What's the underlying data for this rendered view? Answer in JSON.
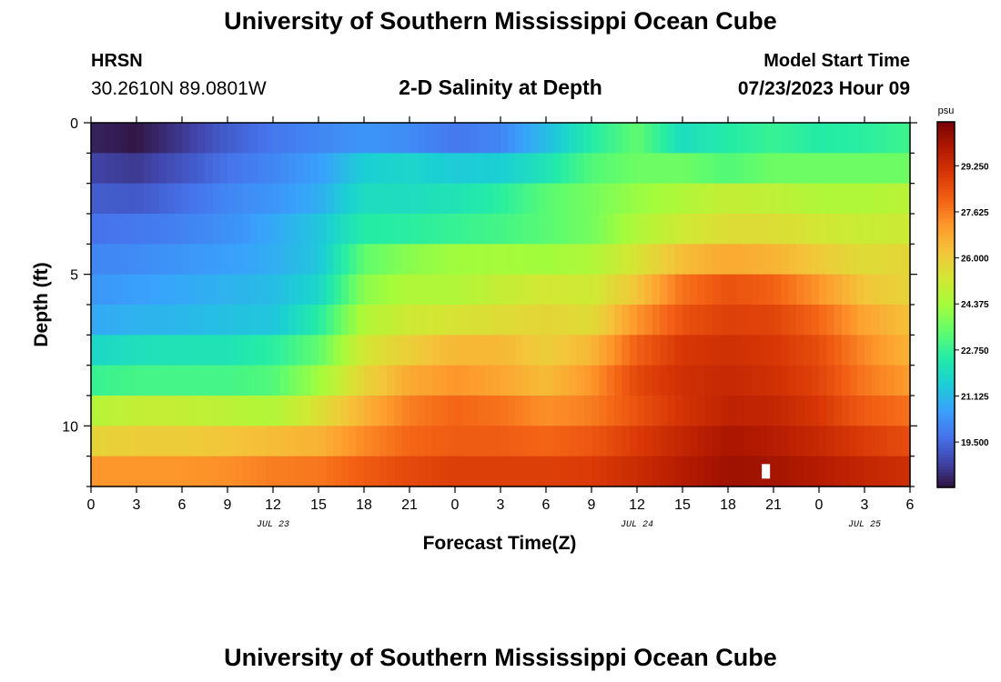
{
  "header": {
    "title": "University of Southern Mississippi Ocean Cube",
    "station": "HRSN",
    "coords": "30.2610N  89.0801W",
    "subtitle": "2-D Salinity at Depth",
    "model_label": "Model Start Time",
    "model_time": "07/23/2023 Hour 09"
  },
  "footer": {
    "title": "University of Southern Mississippi Ocean Cube"
  },
  "chart_data": {
    "type": "heatmap",
    "title": "2-D Salinity at Depth",
    "xlabel": "Forecast Time(Z)",
    "ylabel": "Depth (ft)",
    "x_ticks": [
      "0",
      "3",
      "6",
      "9",
      "12",
      "15",
      "18",
      "21",
      "0",
      "3",
      "6",
      "9",
      "12",
      "15",
      "18",
      "21",
      "0",
      "3",
      "6"
    ],
    "x_range_hours": [
      0,
      54
    ],
    "day_labels": [
      {
        "label": "JUL 23",
        "hour": 12
      },
      {
        "label": "JUL 24",
        "hour": 36
      },
      {
        "label": "JUL 25",
        "hour": 51
      }
    ],
    "y_ticks": [
      "0",
      "5",
      "10"
    ],
    "y_range_ft": [
      0,
      12
    ],
    "depth_levels_ft": [
      0.5,
      1.5,
      2.5,
      3.5,
      4.5,
      5.5,
      6.5,
      7.5,
      8.5,
      9.5,
      10.5,
      11.5
    ],
    "time_hours": [
      0,
      3,
      6,
      9,
      12,
      15,
      18,
      21,
      24,
      27,
      30,
      33,
      36,
      39,
      42,
      45,
      48,
      51,
      54
    ],
    "salinity_psu": [
      [
        18.2,
        18.0,
        18.6,
        19.3,
        19.8,
        20.1,
        20.4,
        20.2,
        19.8,
        20.1,
        21.2,
        22.5,
        23.4,
        22.0,
        22.5,
        22.8,
        22.5,
        22.6,
        22.9
      ],
      [
        18.8,
        18.6,
        19.1,
        19.7,
        20.1,
        20.6,
        21.6,
        21.8,
        21.5,
        21.6,
        22.2,
        23.2,
        23.6,
        23.6,
        23.2,
        23.6,
        23.6,
        23.6,
        23.6
      ],
      [
        19.3,
        19.2,
        19.6,
        20.1,
        20.4,
        20.9,
        22.0,
        22.0,
        22.2,
        22.6,
        23.3,
        23.7,
        24.2,
        24.6,
        25.0,
        24.9,
        24.6,
        24.6,
        24.8
      ],
      [
        19.7,
        19.8,
        20.0,
        20.3,
        20.8,
        21.4,
        22.5,
        22.6,
        22.8,
        23.0,
        23.3,
        23.7,
        24.6,
        25.2,
        25.6,
        25.6,
        25.3,
        25.1,
        25.2
      ],
      [
        20.1,
        20.2,
        20.4,
        20.6,
        20.9,
        21.4,
        23.4,
        24.0,
        24.3,
        24.4,
        24.3,
        24.6,
        25.4,
        26.4,
        26.8,
        26.6,
        26.1,
        25.6,
        25.8
      ],
      [
        20.4,
        20.6,
        20.8,
        21.0,
        21.2,
        21.8,
        24.0,
        24.6,
        24.6,
        25.0,
        25.3,
        25.2,
        26.2,
        27.8,
        28.4,
        28.1,
        27.2,
        26.2,
        25.8
      ],
      [
        20.8,
        21.0,
        21.1,
        21.3,
        21.4,
        22.5,
        24.6,
        25.2,
        25.4,
        25.6,
        25.8,
        25.6,
        27.2,
        28.4,
        28.8,
        28.7,
        28.0,
        26.9,
        26.3
      ],
      [
        21.8,
        22.1,
        22.2,
        22.2,
        22.6,
        23.4,
        25.3,
        26.0,
        26.5,
        26.5,
        26.0,
        26.5,
        28.1,
        29.0,
        29.2,
        29.0,
        28.5,
        27.4,
        26.6
      ],
      [
        22.8,
        23.0,
        23.0,
        23.0,
        23.2,
        24.3,
        25.8,
        26.8,
        27.2,
        26.9,
        26.4,
        27.2,
        28.6,
        29.2,
        29.4,
        29.2,
        28.7,
        27.7,
        27.1
      ],
      [
        24.7,
        25.0,
        25.0,
        24.8,
        24.6,
        25.5,
        26.6,
        27.6,
        28.0,
        27.8,
        27.3,
        27.6,
        28.4,
        29.1,
        29.6,
        29.5,
        29.0,
        28.2,
        27.8
      ],
      [
        25.8,
        26.0,
        26.0,
        26.2,
        26.4,
        26.6,
        27.4,
        28.0,
        28.2,
        28.2,
        28.0,
        28.3,
        28.9,
        29.5,
        30.0,
        29.8,
        29.4,
        28.9,
        28.5
      ],
      [
        27.2,
        27.2,
        27.2,
        27.3,
        27.6,
        27.7,
        28.2,
        28.6,
        28.8,
        28.8,
        28.8,
        28.9,
        29.3,
        29.8,
        30.2,
        30.1,
        29.8,
        29.5,
        29.2
      ]
    ],
    "colorbar": {
      "unit": "psu",
      "range": [
        17.9,
        30.8
      ],
      "ticks": [
        "29.250",
        "27.625",
        "26.000",
        "24.375",
        "22.750",
        "21.125",
        "19.500"
      ]
    },
    "palette": [
      "#30123b",
      "#4145ab",
      "#4675ed",
      "#39a2fc",
      "#1bcfd4",
      "#24eca6",
      "#61fc6c",
      "#a4fc3b",
      "#d1e834",
      "#f3c63a",
      "#fe9b2d",
      "#f36315",
      "#d93806",
      "#b11901",
      "#7a0402"
    ],
    "marker": {
      "hour": 44.5,
      "depth_ft": 11.5,
      "color": "#ffffff"
    }
  }
}
